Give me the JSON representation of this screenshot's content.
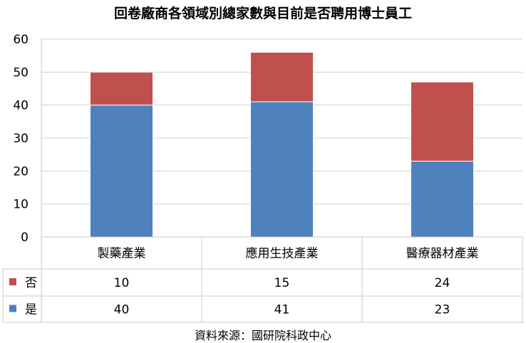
{
  "chart_data": {
    "type": "bar",
    "stacked": true,
    "title": "回卷廠商各領域別總家數與目前是否聘用博士員工",
    "categories": [
      "製藥產業",
      "應用生技產業",
      "醫療器材產業"
    ],
    "series": [
      {
        "name": "是",
        "values": [
          40,
          41,
          23
        ],
        "color": "#4f81bd"
      },
      {
        "name": "否",
        "values": [
          10,
          15,
          24
        ],
        "color": "#c0504d"
      }
    ],
    "ylim": [
      0,
      60
    ],
    "yticks": [
      "0",
      "10",
      "20",
      "30",
      "40",
      "50",
      "60"
    ],
    "grid": true,
    "legend": "data-table",
    "xlabel": "",
    "ylabel": ""
  },
  "source_note": "資料來源：國研院科政中心"
}
